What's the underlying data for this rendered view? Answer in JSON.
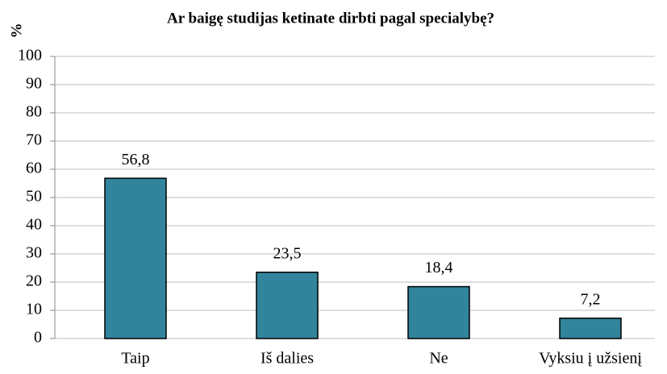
{
  "chart_data": {
    "type": "bar",
    "title": "Ar baigę studijas ketinate dirbti pagal specialybę?",
    "y_label": "%",
    "categories": [
      "Taip",
      "Iš dalies",
      "Ne",
      "Vyksiu į užsienį"
    ],
    "values": [
      56.8,
      23.5,
      18.4,
      7.2
    ],
    "value_labels": [
      "56,8",
      "23,5",
      "18,4",
      "7,2"
    ],
    "color": "#31849b",
    "ylim": [
      0,
      100
    ],
    "yticks": [
      0,
      10,
      20,
      30,
      40,
      50,
      60,
      70,
      80,
      90,
      100
    ],
    "grid": true
  }
}
